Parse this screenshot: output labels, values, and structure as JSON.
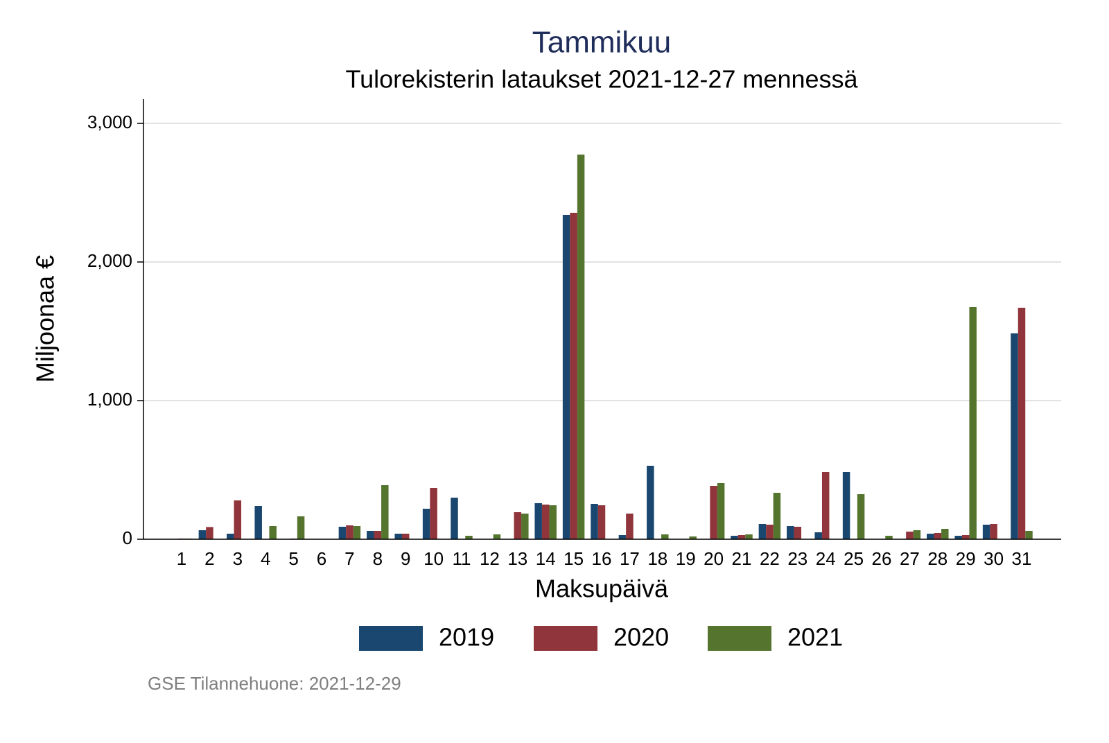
{
  "chart_data": {
    "type": "bar",
    "title": "Tammikuu",
    "subtitle": "Tulorekisterin lataukset 2021-12-27 mennessä",
    "y_label": "Miljoonaa €",
    "x_label": "Maksupäivä",
    "source": "GSE Tilannehuone: 2021-12-29",
    "categories": [
      "1",
      "2",
      "3",
      "4",
      "5",
      "6",
      "7",
      "8",
      "9",
      "10",
      "11",
      "12",
      "13",
      "14",
      "15",
      "16",
      "17",
      "18",
      "19",
      "20",
      "21",
      "22",
      "23",
      "24",
      "25",
      "26",
      "27",
      "28",
      "29",
      "30",
      "31"
    ],
    "series": [
      {
        "name": "2019",
        "color": "#1a476f",
        "values": [
          0,
          65,
          40,
          240,
          2,
          0,
          90,
          60,
          40,
          220,
          300,
          0,
          0,
          260,
          2340,
          255,
          30,
          530,
          0,
          0,
          25,
          110,
          95,
          50,
          485,
          0,
          0,
          40,
          25,
          105,
          1485
        ]
      },
      {
        "name": "2020",
        "color": "#90353b",
        "values": [
          5,
          88,
          280,
          0,
          5,
          0,
          100,
          60,
          40,
          370,
          0,
          0,
          195,
          250,
          2355,
          245,
          185,
          0,
          0,
          385,
          30,
          105,
          90,
          485,
          0,
          0,
          55,
          45,
          30,
          110,
          1670
        ]
      },
      {
        "name": "2021",
        "color": "#55752f",
        "values": [
          5,
          0,
          0,
          95,
          165,
          0,
          95,
          390,
          0,
          0,
          25,
          35,
          185,
          245,
          2775,
          0,
          0,
          35,
          20,
          405,
          35,
          335,
          0,
          0,
          325,
          25,
          65,
          75,
          1675,
          0,
          60
        ]
      }
    ],
    "ylim": [
      0,
      3175
    ],
    "yticks": [
      0,
      {
        "value": 1000,
        "label": "1,000"
      },
      {
        "value": 2000,
        "label": "2,000"
      },
      {
        "value": 3000,
        "label": "3,000"
      }
    ],
    "grid": true,
    "legend": "bottom"
  }
}
